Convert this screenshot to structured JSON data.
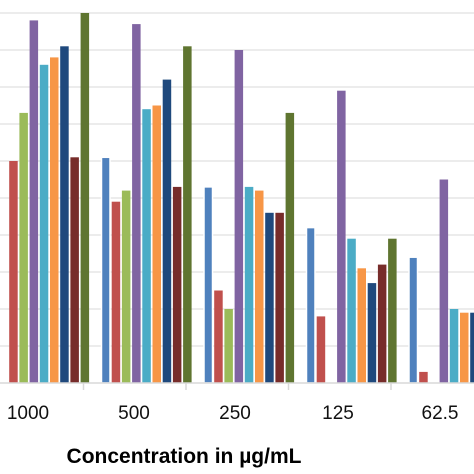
{
  "chart_data": {
    "type": "bar",
    "title": "",
    "xlabel": "Concentration in µg/mL",
    "ylabel": "",
    "categories": [
      "1000",
      "500",
      "250",
      "125",
      "62.5"
    ],
    "ylim": [
      0,
      100
    ],
    "grid": true,
    "series": [
      {
        "color": "#4f81bd",
        "values": [
          null,
          61,
          53,
          42,
          34
        ]
      },
      {
        "color": "#c0504d",
        "values": [
          60,
          49,
          25,
          18,
          3
        ]
      },
      {
        "color": "#9bbb59",
        "values": [
          73,
          52,
          20,
          null,
          null
        ]
      },
      {
        "color": "#8064a2",
        "values": [
          98,
          97,
          90,
          79,
          55
        ]
      },
      {
        "color": "#4bacc6",
        "values": [
          86,
          74,
          53,
          39,
          20
        ]
      },
      {
        "color": "#f79646",
        "values": [
          88,
          75,
          52,
          31,
          19
        ]
      },
      {
        "color": "#1f497d",
        "values": [
          91,
          82,
          46,
          27,
          19
        ]
      },
      {
        "color": "#772c2a",
        "values": [
          61,
          53,
          46,
          32,
          21
        ]
      },
      {
        "color": "#5f7530",
        "values": [
          100,
          91,
          73,
          39,
          22
        ]
      }
    ]
  }
}
